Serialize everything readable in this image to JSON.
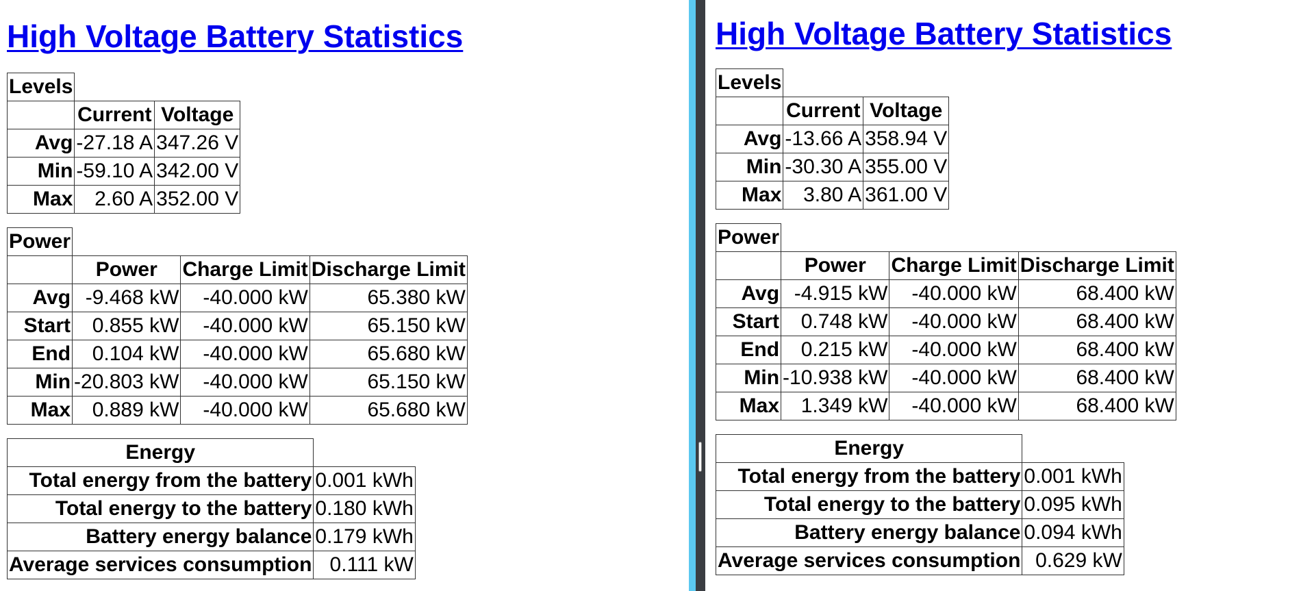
{
  "left": {
    "title": "High Voltage Battery Statistics",
    "levels": {
      "section": "Levels",
      "columns": [
        "Current",
        "Voltage"
      ],
      "rows": [
        {
          "label": "Avg",
          "current": "-27.18 A",
          "voltage": "347.26 V"
        },
        {
          "label": "Min",
          "current": "-59.10 A",
          "voltage": "342.00 V"
        },
        {
          "label": "Max",
          "current": "2.60 A",
          "voltage": "352.00 V"
        }
      ]
    },
    "power": {
      "section": "Power",
      "columns": [
        "Power",
        "Charge Limit",
        "Discharge Limit"
      ],
      "rows": [
        {
          "label": "Avg",
          "power": "-9.468 kW",
          "charge": "-40.000 kW",
          "discharge": "65.380 kW"
        },
        {
          "label": "Start",
          "power": "0.855 kW",
          "charge": "-40.000 kW",
          "discharge": "65.150 kW"
        },
        {
          "label": "End",
          "power": "0.104 kW",
          "charge": "-40.000 kW",
          "discharge": "65.680 kW"
        },
        {
          "label": "Min",
          "power": "-20.803 kW",
          "charge": "-40.000 kW",
          "discharge": "65.150 kW"
        },
        {
          "label": "Max",
          "power": "0.889 kW",
          "charge": "-40.000 kW",
          "discharge": "65.680 kW"
        }
      ]
    },
    "energy": {
      "section": "Energy",
      "rows": [
        {
          "label": "Total energy from the battery",
          "value": "0.001 kWh"
        },
        {
          "label": "Total energy to the battery",
          "value": "0.180 kWh"
        },
        {
          "label": "Battery energy balance",
          "value": "0.179 kWh"
        },
        {
          "label": "Average services consumption",
          "value": "0.111 kW"
        }
      ]
    }
  },
  "right": {
    "title": "High Voltage Battery Statistics",
    "levels": {
      "section": "Levels",
      "columns": [
        "Current",
        "Voltage"
      ],
      "rows": [
        {
          "label": "Avg",
          "current": "-13.66 A",
          "voltage": "358.94 V"
        },
        {
          "label": "Min",
          "current": "-30.30 A",
          "voltage": "355.00 V"
        },
        {
          "label": "Max",
          "current": "3.80 A",
          "voltage": "361.00 V"
        }
      ]
    },
    "power": {
      "section": "Power",
      "columns": [
        "Power",
        "Charge Limit",
        "Discharge Limit"
      ],
      "rows": [
        {
          "label": "Avg",
          "power": "-4.915 kW",
          "charge": "-40.000 kW",
          "discharge": "68.400 kW"
        },
        {
          "label": "Start",
          "power": "0.748 kW",
          "charge": "-40.000 kW",
          "discharge": "68.400 kW"
        },
        {
          "label": "End",
          "power": "0.215 kW",
          "charge": "-40.000 kW",
          "discharge": "68.400 kW"
        },
        {
          "label": "Min",
          "power": "-10.938 kW",
          "charge": "-40.000 kW",
          "discharge": "68.400 kW"
        },
        {
          "label": "Max",
          "power": "1.349 kW",
          "charge": "-40.000 kW",
          "discharge": "68.400 kW"
        }
      ]
    },
    "energy": {
      "section": "Energy",
      "rows": [
        {
          "label": "Total energy from the battery",
          "value": "0.001 kWh"
        },
        {
          "label": "Total energy to the battery",
          "value": "0.095 kWh"
        },
        {
          "label": "Battery energy balance",
          "value": "0.094 kWh"
        },
        {
          "label": "Average services consumption",
          "value": "0.629 kW"
        }
      ]
    }
  },
  "colors": {
    "link": "#0000ee",
    "splitter_accent": "#5bc8f0",
    "splitter_dark": "#3a3d42"
  }
}
